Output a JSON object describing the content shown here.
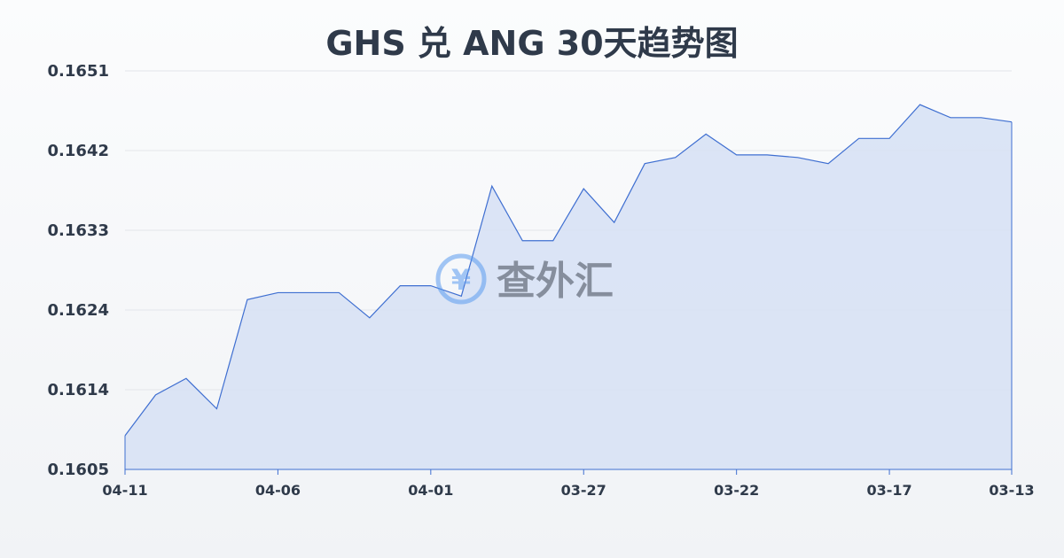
{
  "chart_data": {
    "type": "area",
    "title": "GHS 兑 ANG 30天趋势图",
    "xlabel": "",
    "ylabel": "",
    "x": [
      "04-11",
      "04-10",
      "04-09",
      "04-08",
      "04-07",
      "04-06",
      "04-05",
      "04-04",
      "04-03",
      "04-02",
      "04-01",
      "03-31",
      "03-30",
      "03-29",
      "03-28",
      "03-27",
      "03-26",
      "03-25",
      "03-24",
      "03-23",
      "03-22",
      "03-21",
      "03-20",
      "03-19",
      "03-18",
      "03-17",
      "03-16",
      "03-15",
      "03-14",
      "03-13"
    ],
    "values": [
      0.16089,
      0.16136,
      0.16155,
      0.1612,
      0.16246,
      0.16254,
      0.16254,
      0.16254,
      0.16225,
      0.16262,
      0.16262,
      0.1625,
      0.16377,
      0.16314,
      0.16314,
      0.16374,
      0.16335,
      0.16403,
      0.1641,
      0.16437,
      0.16413,
      0.16413,
      0.1641,
      0.16403,
      0.16432,
      0.16432,
      0.16471,
      0.16456,
      0.16456,
      0.16451
    ],
    "x_tick_labels": [
      "04-11",
      "04-06",
      "04-01",
      "03-27",
      "03-22",
      "03-17",
      "03-13"
    ],
    "y_tick_labels": [
      "0.1651",
      "0.1642",
      "0.1633",
      "0.1624",
      "0.1614",
      "0.1605"
    ],
    "ylim": [
      0.1605,
      0.1651
    ],
    "grid": true,
    "line_color": "#3f6fd1",
    "fill_color": "#d6e1f5"
  },
  "watermark": "查外汇"
}
